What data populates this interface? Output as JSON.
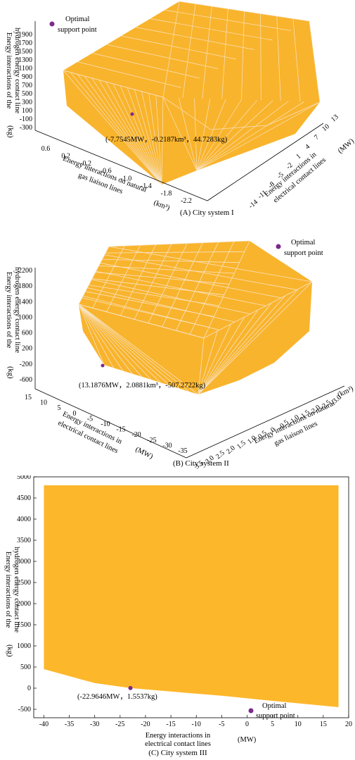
{
  "chart_data": [
    {
      "type": "surface3d",
      "caption": "(A) City system I",
      "z_axis": {
        "label_line1": "Energy interactions of the",
        "label_line2": "hydrogen energy contact line",
        "unit": "(kg)",
        "ticks": [
          "1900",
          "1700",
          "1500",
          "1300",
          "1100",
          "900",
          "700",
          "500",
          "300",
          "100",
          "-100",
          "-300"
        ]
      },
      "x_axis": {
        "label_line1": "Energy interactions on natural",
        "label_line2": "gas liaison lines",
        "unit": "(km³)",
        "ticks": [
          "0.6",
          "0.2",
          "-0.2",
          "-0.6",
          "-1.0",
          "-1.4",
          "-1.8",
          "-2.2"
        ]
      },
      "y_axis": {
        "label_line1": "Energy interactions in",
        "label_line2": "electrical contact lines",
        "unit": "(MW)",
        "ticks": [
          "-14",
          "-11",
          "-8",
          "-5",
          "-2",
          "1",
          "4",
          "7",
          "10",
          "13"
        ]
      },
      "legend": {
        "label_line1": "Optimal",
        "label_line2": "support point",
        "position": "top-left"
      },
      "optimal_point": {
        "electrical_MW": -7.7545,
        "gas_km3": -0.2187,
        "hydrogen_kg": 44.7283
      },
      "annotation": "(-7.7545MW，-0.2187km³，44.7283kg)",
      "colors": {
        "surface": "#f9b42d",
        "mesh": "#f7e3c3",
        "point": "#7b2a8c"
      }
    },
    {
      "type": "surface3d",
      "caption": "(B) City system II",
      "z_axis": {
        "label_line1": "Energy interactions of the",
        "label_line2": "hydrogen energy contact line",
        "unit": "(kg)",
        "ticks": [
          "2200",
          "1800",
          "1400",
          "1000",
          "600",
          "200",
          "-200",
          "-600"
        ]
      },
      "x_axis": {
        "label_line1": "Energy interactions in",
        "label_line2": "electrical contact lines",
        "unit": "(MW)",
        "ticks": [
          "15",
          "10",
          "5",
          "0",
          "-5",
          "-10",
          "-15",
          "-20",
          "-25",
          "-30",
          "-35"
        ]
      },
      "y_axis": {
        "label_line1": "Energy interactions on natural",
        "label_line2": "gas liaison lines",
        "unit": "(km³)",
        "ticks": [
          "3.5",
          "3.0",
          "2.5",
          "2.0",
          "1.5",
          "1.0",
          "0.5",
          "0",
          "-0.5",
          "-1.0",
          "-1.5",
          "-2.0",
          "-2.5",
          "-3.0"
        ]
      },
      "legend": {
        "label_line1": "Optimal",
        "label_line2": "support point",
        "position": "top-right"
      },
      "optimal_point": {
        "electrical_MW": 13.1876,
        "gas_km3": 2.0881,
        "hydrogen_kg": -507.2722
      },
      "annotation": "(13.1876MW，2.0881km³，-507.2722kg)",
      "colors": {
        "surface": "#f9b42d",
        "mesh": "#f7e3c3",
        "point": "#7b2a8c"
      }
    },
    {
      "type": "area",
      "caption": "(C) City system III",
      "xlabel_line1": "Energy interactions in",
      "xlabel_line2": "electrical contact lines",
      "xunit": "(MW)",
      "ylabel_line1": "Energy interactions of the",
      "ylabel_line2": "hydrogen energy contact line",
      "yunit": "(kg)",
      "xlim": [
        -42,
        20
      ],
      "ylim": [
        -700,
        5000
      ],
      "xticks": [
        -40,
        -35,
        -30,
        -25,
        -20,
        -15,
        -10,
        -5,
        0,
        5,
        10,
        15,
        20
      ],
      "yticks": [
        -500,
        0,
        500,
        1000,
        1500,
        2000,
        2500,
        3000,
        3500,
        4000,
        4500,
        5000
      ],
      "region_upper": {
        "x": [
          -40,
          18
        ],
        "y": [
          4800,
          4800
        ]
      },
      "region_lower": {
        "x": [
          -40,
          -30,
          -22.9646,
          -15,
          -5,
          5,
          18
        ],
        "y": [
          450,
          120,
          1.5537,
          -80,
          -180,
          -300,
          -450
        ]
      },
      "optimal_point": {
        "x": -22.9646,
        "y": 1.5537
      },
      "annotation": "(-22.9646MW，1.5537kg)",
      "legend": {
        "label_line1": "Optimal",
        "label_line2": "support point",
        "position": "bottom-right"
      },
      "colors": {
        "surface": "#fdb72b",
        "point": "#7b2a8c"
      }
    }
  ]
}
